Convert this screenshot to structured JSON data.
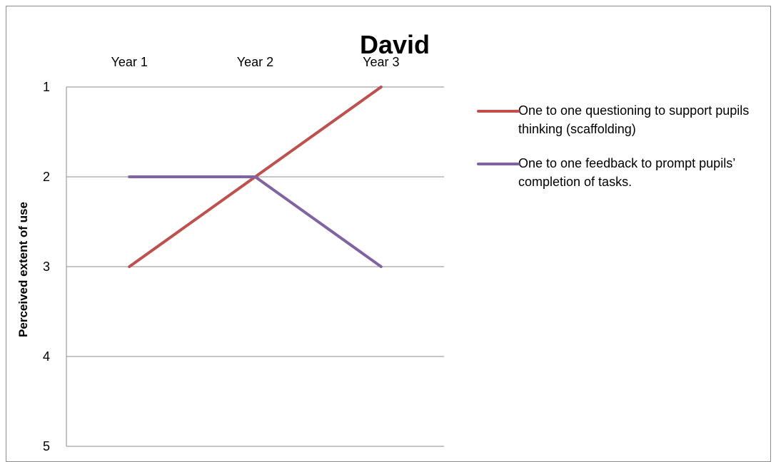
{
  "chart_data": {
    "type": "line",
    "title": "David",
    "xlabel": "",
    "ylabel": "Perceived extent of use",
    "categories": [
      "Year 1",
      "Year 2",
      "Year 3"
    ],
    "ylim": [
      1,
      5
    ],
    "y_axis_inverted": true,
    "y_ticks": [
      "1",
      "2",
      "3",
      "4",
      "5"
    ],
    "x_axis_position": "top",
    "grid": true,
    "legend_position": "right",
    "series": [
      {
        "name": "One to one questioning to support pupils thinking (scaffolding)",
        "values": [
          3,
          2,
          1
        ],
        "color": "#c0504d"
      },
      {
        "name": "One to one feedback to prompt pupils’ completion of tasks.",
        "values": [
          2,
          2,
          3
        ],
        "color": "#8064a2"
      }
    ]
  }
}
